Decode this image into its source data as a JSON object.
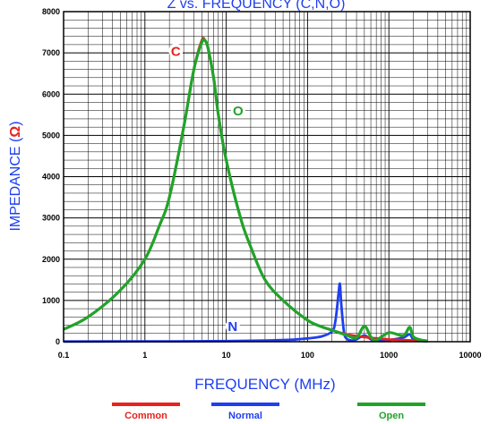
{
  "chart_data": {
    "type": "line",
    "title": "Z vs. FREQUENCY (C,N,O)",
    "xlabel": "FREQUENCY (MHz)",
    "ylabel": "IMPEDANCE (",
    "ylabel_unit": "Ω",
    "ylabel_close": ")",
    "x_scale": "log",
    "xlim": [
      0.1,
      10000
    ],
    "ylim": [
      0,
      8000
    ],
    "grid": true,
    "legend_position": "bottom",
    "x_ticks": [
      "0.1",
      "1",
      "10",
      "100",
      "1000",
      "10000"
    ],
    "y_ticks": [
      "0",
      "1000",
      "2000",
      "3000",
      "4000",
      "5000",
      "6000",
      "7000",
      "8000"
    ],
    "series": [
      {
        "name": "Common",
        "marker": "C",
        "color": "#e8221c",
        "x": [
          0.1,
          0.2,
          0.5,
          1,
          1.5,
          2,
          3,
          4,
          5,
          5.5,
          6,
          7,
          8,
          10,
          15,
          20,
          30,
          50,
          100,
          150,
          200,
          300,
          500,
          1000,
          1500,
          2000,
          3000
        ],
        "values": [
          300,
          600,
          1250,
          2000,
          2800,
          3500,
          5200,
          6600,
          7300,
          7300,
          7100,
          6400,
          5500,
          4400,
          3000,
          2300,
          1500,
          1000,
          520,
          360,
          280,
          180,
          110,
          55,
          40,
          30,
          20
        ]
      },
      {
        "name": "Normal",
        "marker": "N",
        "color": "#1f3ff0",
        "x": [
          0.1,
          1,
          10,
          50,
          100,
          150,
          200,
          220,
          240,
          250,
          260,
          280,
          300,
          350,
          400,
          500,
          600,
          700,
          1000,
          1500,
          1800,
          2000,
          2500,
          3000
        ],
        "values": [
          5,
          8,
          15,
          40,
          80,
          130,
          250,
          500,
          1150,
          1400,
          900,
          250,
          80,
          30,
          60,
          150,
          60,
          20,
          40,
          100,
          180,
          60,
          20,
          10
        ]
      },
      {
        "name": "Open",
        "marker": "O",
        "color": "#21a32a",
        "x": [
          0.1,
          0.2,
          0.5,
          1,
          1.5,
          2,
          3,
          4,
          5,
          5.5,
          6,
          7,
          8,
          10,
          15,
          20,
          30,
          50,
          100,
          150,
          200,
          300,
          400,
          500,
          600,
          700,
          1000,
          1500,
          1800,
          2000,
          2500,
          3000
        ],
        "values": [
          300,
          600,
          1250,
          2000,
          2800,
          3500,
          5200,
          6600,
          7250,
          7300,
          7100,
          6400,
          5500,
          4400,
          3000,
          2300,
          1500,
          1000,
          520,
          360,
          280,
          160,
          100,
          380,
          120,
          40,
          220,
          150,
          350,
          120,
          40,
          20
        ]
      }
    ]
  }
}
